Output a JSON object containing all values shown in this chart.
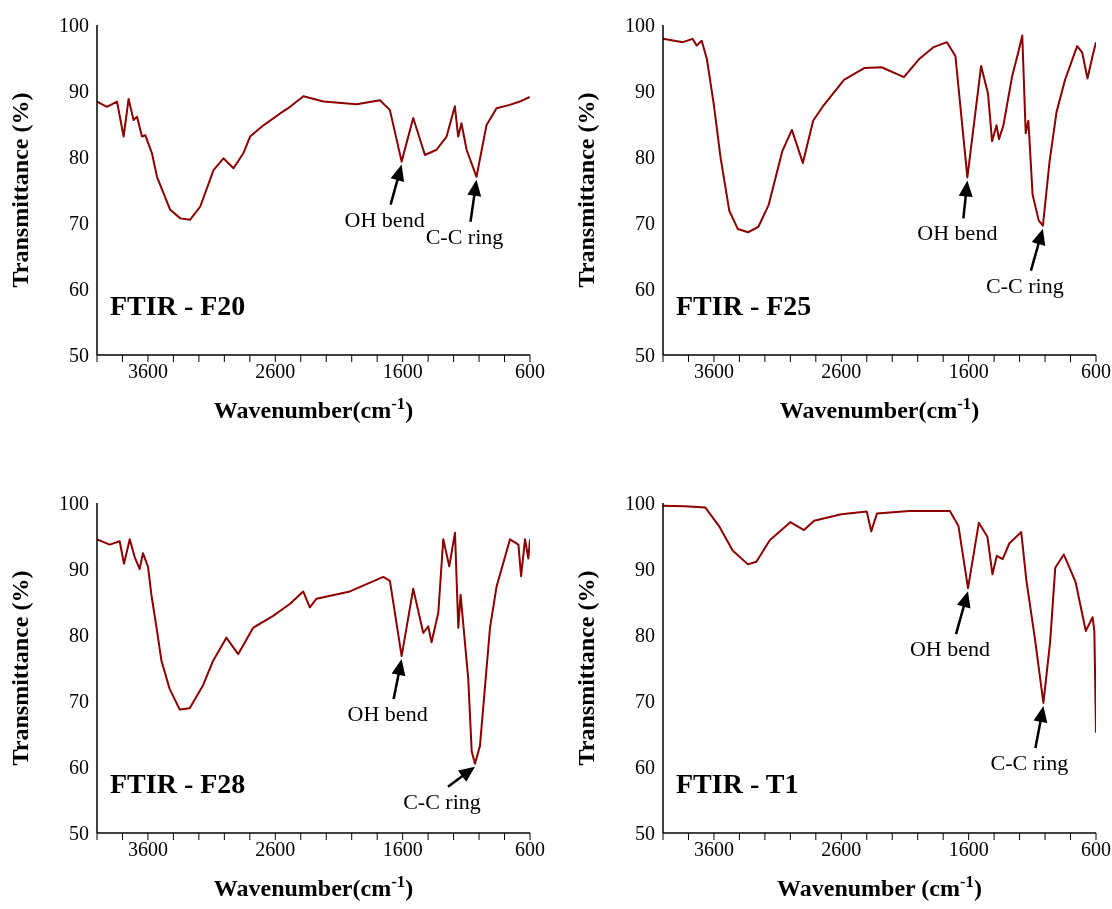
{
  "chart_data": [
    {
      "type": "line",
      "title": "FTIR - F20",
      "xlabel": "Wavenumber(cm$^{-1}$)",
      "ylabel": "Transmittance (%)",
      "xlim": [
        4000,
        600
      ],
      "ylim": [
        50,
        100
      ],
      "xticks": [
        {
          "value": 4000,
          "label": null
        },
        {
          "value": 3800,
          "label": null
        },
        3600,
        {
          "value": 3400,
          "label": null
        },
        {
          "value": 3200,
          "label": null
        },
        {
          "value": 3000,
          "label": null
        },
        {
          "value": 2800,
          "label": null
        },
        2600,
        {
          "value": 2400,
          "label": null
        },
        {
          "value": 2200,
          "label": null
        },
        {
          "value": 2000,
          "label": null
        },
        {
          "value": 1800,
          "label": null
        },
        1600,
        {
          "value": 1400,
          "label": null
        },
        {
          "value": 1200,
          "label": null
        },
        {
          "value": 1000,
          "label": null
        },
        {
          "value": 800,
          "label": null
        },
        600
      ],
      "yticks": [
        50,
        60,
        70,
        80,
        90,
        100
      ],
      "marker": "none",
      "line_style": "solid",
      "annotations": [
        {
          "text": "OH bend",
          "x": 1608,
          "y": 79.3
        },
        {
          "text": "C-C ring",
          "x": 1020,
          "y": 77.0
        }
      ],
      "series": [
        {
          "color": "#8b0000",
          "x": [
            4000,
            3922,
            3843,
            3791,
            3752,
            3713,
            3686,
            3647,
            3621,
            3569,
            3529,
            3425,
            3346,
            3268,
            3189,
            3085,
            3007,
            2928,
            2850,
            2798,
            2693,
            2562,
            2484,
            2379,
            2222,
            1961,
            1778,
            1700,
            1608,
            1517,
            1425,
            1334,
            1255,
            1190,
            1164,
            1138,
            1098,
            1020,
            942,
            863,
            759,
            680,
            602
          ],
          "values": [
            88.4,
            87.6,
            88.4,
            83.1,
            88.8,
            85.6,
            86.1,
            83.1,
            83.3,
            80.6,
            77.0,
            72.0,
            70.7,
            70.5,
            72.5,
            78.0,
            79.8,
            78.3,
            80.6,
            83.1,
            84.8,
            86.6,
            87.6,
            89.2,
            88.4,
            88.0,
            88.6,
            87.1,
            79.3,
            85.9,
            80.3,
            81.1,
            83.1,
            87.7,
            83.1,
            85.1,
            81.1,
            77.0,
            84.8,
            87.4,
            87.9,
            88.4,
            89.1
          ]
        }
      ]
    },
    {
      "type": "line",
      "title": "FTIR - F25",
      "xlabel": "Wavenumber(cm$^{-1}$)",
      "ylabel": "Transmittance (%)",
      "xlim": [
        4000,
        600
      ],
      "ylim": [
        50,
        100
      ],
      "xticks": [
        {
          "value": 4000,
          "label": null
        },
        {
          "value": 3800,
          "label": null
        },
        3600,
        {
          "value": 3400,
          "label": null
        },
        {
          "value": 3200,
          "label": null
        },
        {
          "value": 3000,
          "label": null
        },
        {
          "value": 2800,
          "label": null
        },
        2600,
        {
          "value": 2400,
          "label": null
        },
        {
          "value": 2200,
          "label": null
        },
        {
          "value": 2000,
          "label": null
        },
        {
          "value": 1800,
          "label": null
        },
        1600,
        {
          "value": 1400,
          "label": null
        },
        {
          "value": 1200,
          "label": null
        },
        {
          "value": 1000,
          "label": null
        },
        {
          "value": 800,
          "label": null
        },
        600
      ],
      "yticks": [
        50,
        60,
        70,
        80,
        90,
        100
      ],
      "marker": "none",
      "line_style": "solid",
      "annotations": [
        {
          "text": "OH bend",
          "x": 1610,
          "y": 76.9
        },
        {
          "text": "C-C ring",
          "x": 1017,
          "y": 69.6
        }
      ],
      "series": [
        {
          "color": "#8b0000",
          "x": [
            4000,
            3844,
            3768,
            3736,
            3696,
            3655,
            3602,
            3548,
            3480,
            3413,
            3332,
            3252,
            3171,
            3063,
            2988,
            2902,
            2821,
            2740,
            2579,
            2417,
            2283,
            2108,
            1986,
            1879,
            1771,
            1704,
            1610,
            1502,
            1448,
            1416,
            1381,
            1362,
            1327,
            1259,
            1211,
            1179,
            1152,
            1131,
            1098,
            1050,
            1017,
            964,
            910,
            843,
            748,
            708,
            667,
            627,
            600
          ],
          "values": [
            97.9,
            97.4,
            97.9,
            96.9,
            97.6,
            94.8,
            88.1,
            79.9,
            71.9,
            69.1,
            68.6,
            69.4,
            72.7,
            80.9,
            84.1,
            79.1,
            85.5,
            87.8,
            91.7,
            93.5,
            93.6,
            92.1,
            94.9,
            96.6,
            97.4,
            95.3,
            76.9,
            93.8,
            89.6,
            82.4,
            84.8,
            82.7,
            84.8,
            92.2,
            95.8,
            98.4,
            83.6,
            85.5,
            74.3,
            70.4,
            69.6,
            79.4,
            86.8,
            91.7,
            96.8,
            95.8,
            91.9,
            95.3,
            97.4
          ]
        }
      ]
    },
    {
      "type": "line",
      "title": "FTIR - F28",
      "xlabel": "Wavenumber(cm$^{-1}$)",
      "ylabel": "Transmittance (%)",
      "xlim": [
        4000,
        600
      ],
      "ylim": [
        50,
        100
      ],
      "xticks": [
        {
          "value": 4000,
          "label": null
        },
        {
          "value": 3800,
          "label": null
        },
        3600,
        {
          "value": 3400,
          "label": null
        },
        {
          "value": 3200,
          "label": null
        },
        {
          "value": 3000,
          "label": null
        },
        {
          "value": 2800,
          "label": null
        },
        2600,
        {
          "value": 2400,
          "label": null
        },
        {
          "value": 2200,
          "label": null
        },
        {
          "value": 2000,
          "label": null
        },
        {
          "value": 1800,
          "label": null
        },
        1600,
        {
          "value": 1400,
          "label": null
        },
        {
          "value": 1200,
          "label": null
        },
        {
          "value": 1000,
          "label": null
        },
        {
          "value": 800,
          "label": null
        },
        600
      ],
      "yticks": [
        50,
        60,
        70,
        80,
        90,
        100
      ],
      "marker": "none",
      "line_style": "solid",
      "annotations": [
        {
          "text": "OH bend",
          "x": 1608,
          "y": 76.8
        },
        {
          "text": "C-C ring",
          "x": 1032,
          "y": 60.5
        }
      ],
      "series": [
        {
          "color": "#8b0000",
          "x": [
            4000,
            3900,
            3822,
            3788,
            3743,
            3704,
            3665,
            3639,
            3599,
            3573,
            3534,
            3494,
            3429,
            3350,
            3272,
            3167,
            3088,
            2984,
            2892,
            2774,
            2617,
            2486,
            2381,
            2329,
            2276,
            2014,
            1752,
            1700,
            1608,
            1517,
            1438,
            1399,
            1373,
            1320,
            1281,
            1234,
            1189,
            1163,
            1145,
            1085,
            1058,
            1032,
            993,
            914,
            862,
            757,
            691,
            670,
            639,
            613,
            600
          ],
          "values": [
            94.5,
            93.7,
            94.2,
            90.8,
            94.5,
            91.8,
            90.0,
            92.4,
            90.3,
            86.1,
            81.3,
            76.1,
            71.8,
            68.7,
            68.9,
            72.4,
            76.1,
            79.6,
            77.1,
            81.1,
            82.9,
            84.7,
            86.6,
            84.2,
            85.5,
            86.6,
            88.8,
            88.2,
            76.8,
            87.0,
            80.3,
            81.3,
            78.9,
            83.4,
            94.5,
            90.4,
            95.5,
            81.1,
            86.1,
            73.4,
            62.4,
            60.5,
            63.2,
            81.1,
            87.4,
            94.5,
            93.7,
            88.9,
            94.5,
            91.6,
            94.5
          ]
        }
      ]
    },
    {
      "type": "line",
      "title": "FTIR - T1",
      "xlabel": "Wavenumber (cm$^{-1}$)",
      "ylabel": "Transmittance (%)",
      "xlim": [
        4000,
        600
      ],
      "ylim": [
        50,
        100
      ],
      "xticks": [
        {
          "value": 4000,
          "label": null
        },
        {
          "value": 3800,
          "label": null
        },
        3600,
        {
          "value": 3400,
          "label": null
        },
        {
          "value": 3200,
          "label": null
        },
        {
          "value": 3000,
          "label": null
        },
        {
          "value": 2800,
          "label": null
        },
        2600,
        {
          "value": 2400,
          "label": null
        },
        {
          "value": 2200,
          "label": null
        },
        {
          "value": 2000,
          "label": null
        },
        {
          "value": 1800,
          "label": null
        },
        1600,
        {
          "value": 1400,
          "label": null
        },
        {
          "value": 1200,
          "label": null
        },
        {
          "value": 1000,
          "label": null
        },
        {
          "value": 800,
          "label": null
        },
        600
      ],
      "yticks": [
        50,
        60,
        70,
        80,
        90,
        100
      ],
      "marker": "none",
      "line_style": "solid",
      "annotations": [
        {
          "text": "OH bend",
          "x": 1605,
          "y": 87.1
        },
        {
          "text": "C-C ring",
          "x": 1013,
          "y": 69.7
        }
      ],
      "series": [
        {
          "color": "#8b0000",
          "x": [
            4000,
            3827,
            3667,
            3560,
            3453,
            3333,
            3267,
            3160,
            3000,
            2893,
            2813,
            2600,
            2400,
            2365,
            2320,
            2067,
            1747,
            1680,
            1605,
            1520,
            1453,
            1413,
            1379,
            1333,
            1280,
            1187,
            1147,
            1080,
            1013,
            960,
            920,
            853,
            760,
            680,
            627,
            613,
            600
          ],
          "values": [
            99.6,
            99.5,
            99.3,
            96.5,
            92.8,
            90.7,
            91.1,
            94.4,
            97.1,
            95.9,
            97.3,
            98.3,
            98.7,
            95.7,
            98.4,
            98.8,
            98.8,
            96.5,
            87.1,
            97.0,
            94.9,
            89.2,
            92.0,
            91.5,
            93.9,
            95.6,
            88.3,
            79.5,
            69.7,
            79.0,
            90.2,
            92.2,
            88.0,
            80.6,
            82.7,
            80.6,
            65.2
          ]
        }
      ]
    }
  ]
}
